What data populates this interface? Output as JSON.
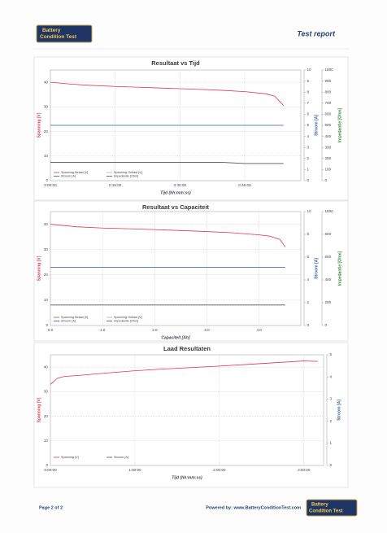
{
  "header": {
    "logo_line1": "Battery",
    "logo_line2": "Condition Test",
    "report_title": "Test report"
  },
  "footer": {
    "page": "Page 2 of 2",
    "powered": "Powered by: www.BatteryConditionTest.com",
    "logo_line1": "Battery",
    "logo_line2": "Condition Test"
  },
  "chart_data": [
    {
      "type": "line",
      "title": "Resultaat vs Tijd",
      "x_label": "Tijd (hh:mm:ss)",
      "y_label": "Spanning [V]",
      "y2_label": "Stroom [A]",
      "y3_label": "Impedantie [Ohm]",
      "xlim": [
        0,
        58
      ],
      "xticks": [
        {
          "value": 0,
          "label": "0:00:00"
        },
        {
          "value": 15,
          "label": "0:15:00"
        },
        {
          "value": 30,
          "label": "0:30:00"
        },
        {
          "value": 45,
          "label": "0:45:00"
        }
      ],
      "ylim": [
        0,
        45
      ],
      "yticks": [
        0,
        10,
        20,
        30,
        40
      ],
      "y2lim": [
        0,
        10
      ],
      "y2ticks": [
        0,
        1,
        2,
        3,
        4,
        5,
        6,
        7,
        8,
        9,
        10
      ],
      "y3lim": [
        0,
        1000
      ],
      "y3ticks": [
        0,
        100,
        200,
        300,
        400,
        500,
        600,
        700,
        800,
        900,
        1000
      ],
      "grid": true,
      "legend": "lower left",
      "x": [
        0,
        5,
        10,
        15,
        20,
        25,
        30,
        35,
        40,
        45,
        50,
        52,
        54
      ],
      "series": [
        {
          "name": "Spanning Belast [V]",
          "color": "#e0354f",
          "values": [
            40,
            39.2,
            38.7,
            38.3,
            38,
            37.7,
            37.4,
            37.1,
            36.7,
            36.2,
            35.3,
            34.3,
            30.5
          ]
        },
        {
          "name": "Spanning Ontlast [V]",
          "color": "#f09aa8",
          "values": [
            null,
            null,
            null,
            null,
            null,
            null,
            null,
            null,
            null,
            null,
            null,
            null,
            null
          ]
        },
        {
          "name": "Stroom [A]",
          "color": "#2a5f9e",
          "axis": "y2",
          "values": [
            5,
            5,
            5,
            5,
            5,
            5,
            5,
            5,
            5,
            5,
            5,
            5,
            5
          ]
        },
        {
          "name": "Impedantie [Ohm]",
          "color": "#555555",
          "axis": "y3",
          "values": [
            165,
            165,
            165,
            165,
            165,
            165,
            165,
            165,
            165,
            155,
            155,
            155,
            155
          ]
        }
      ]
    },
    {
      "type": "line",
      "title": "Resultaat vs Capaciteit",
      "x_label": "Capaciteit [Ah]",
      "y_label": "Spanning [V]",
      "y2_label": "Stroom [A]",
      "y3_label": "Impedantie [Ohm]",
      "xlim": [
        0,
        4.8
      ],
      "xticks": [
        {
          "value": 0,
          "label": "0.0"
        },
        {
          "value": 1,
          "label": "1.0"
        },
        {
          "value": 2,
          "label": "2.0"
        },
        {
          "value": 3,
          "label": "3.0"
        },
        {
          "value": 4,
          "label": "4.0"
        }
      ],
      "ylim": [
        0,
        45
      ],
      "yticks": [
        0,
        10,
        20,
        30,
        40
      ],
      "y2lim": [
        0,
        10
      ],
      "y2ticks": [
        0,
        2,
        4,
        6,
        8,
        10
      ],
      "y3lim": [
        0,
        1000
      ],
      "y3ticks": [
        0,
        200,
        400,
        600,
        800,
        1000
      ],
      "grid": true,
      "legend": "lower left",
      "x": [
        0,
        0.5,
        1,
        1.5,
        2,
        2.5,
        3,
        3.5,
        4,
        4.2,
        4.4,
        4.5
      ],
      "series": [
        {
          "name": "Spanning Belast [V]",
          "color": "#e0354f",
          "values": [
            40,
            39,
            38.5,
            38.2,
            37.9,
            37.5,
            37.1,
            36.6,
            35.8,
            35.3,
            34,
            31
          ]
        },
        {
          "name": "Spanning Ontlast [V]",
          "color": "#f09aa8",
          "values": [
            null,
            null,
            null,
            null,
            null,
            null,
            null,
            null,
            null,
            null,
            null,
            null
          ]
        },
        {
          "name": "Stroom [A]",
          "color": "#2a5f9e",
          "axis": "y2",
          "values": [
            5.1,
            5.1,
            5.1,
            5.1,
            5.1,
            5.1,
            5.1,
            5.1,
            5.1,
            5.1,
            5.1,
            5.1
          ]
        },
        {
          "name": "Impedantie [Ohm]",
          "color": "#555555",
          "axis": "y3",
          "values": [
            180,
            180,
            180,
            180,
            180,
            180,
            180,
            180,
            180,
            180,
            180,
            180
          ]
        }
      ]
    },
    {
      "type": "line",
      "title": "Laad Resultaten",
      "x_label": "Tijd (hh:mm:ss)",
      "y_label": "Spanning [V]",
      "y2_label": "Stroom [A]",
      "xlim": [
        0,
        194
      ],
      "xticks": [
        {
          "value": 0,
          "label": "0:00:00"
        },
        {
          "value": 60,
          "label": "1:00:00"
        },
        {
          "value": 120,
          "label": "2:00:00"
        },
        {
          "value": 180,
          "label": "3:00:00"
        }
      ],
      "ylim": [
        0,
        45
      ],
      "yticks": [
        0,
        10,
        20,
        30,
        40
      ],
      "y2lim": [
        0,
        5
      ],
      "y2ticks": [
        0,
        1,
        2,
        3,
        4,
        5
      ],
      "grid": true,
      "legend": "lower left",
      "x": [
        0,
        5,
        10,
        20,
        40,
        60,
        80,
        100,
        120,
        140,
        160,
        180,
        190
      ],
      "series": [
        {
          "name": "Spanning [V]",
          "color": "#e0354f",
          "values": [
            33,
            35.5,
            36.2,
            36.6,
            37.6,
            38.5,
            39.2,
            39.8,
            40.4,
            41.1,
            41.8,
            42.5,
            42.3
          ]
        },
        {
          "name": "Stroom [A]",
          "color": "#2a5f9e",
          "axis": "y2",
          "values": [
            null,
            null,
            null,
            null,
            null,
            null,
            null,
            null,
            null,
            null,
            null,
            null,
            null
          ]
        }
      ]
    }
  ]
}
